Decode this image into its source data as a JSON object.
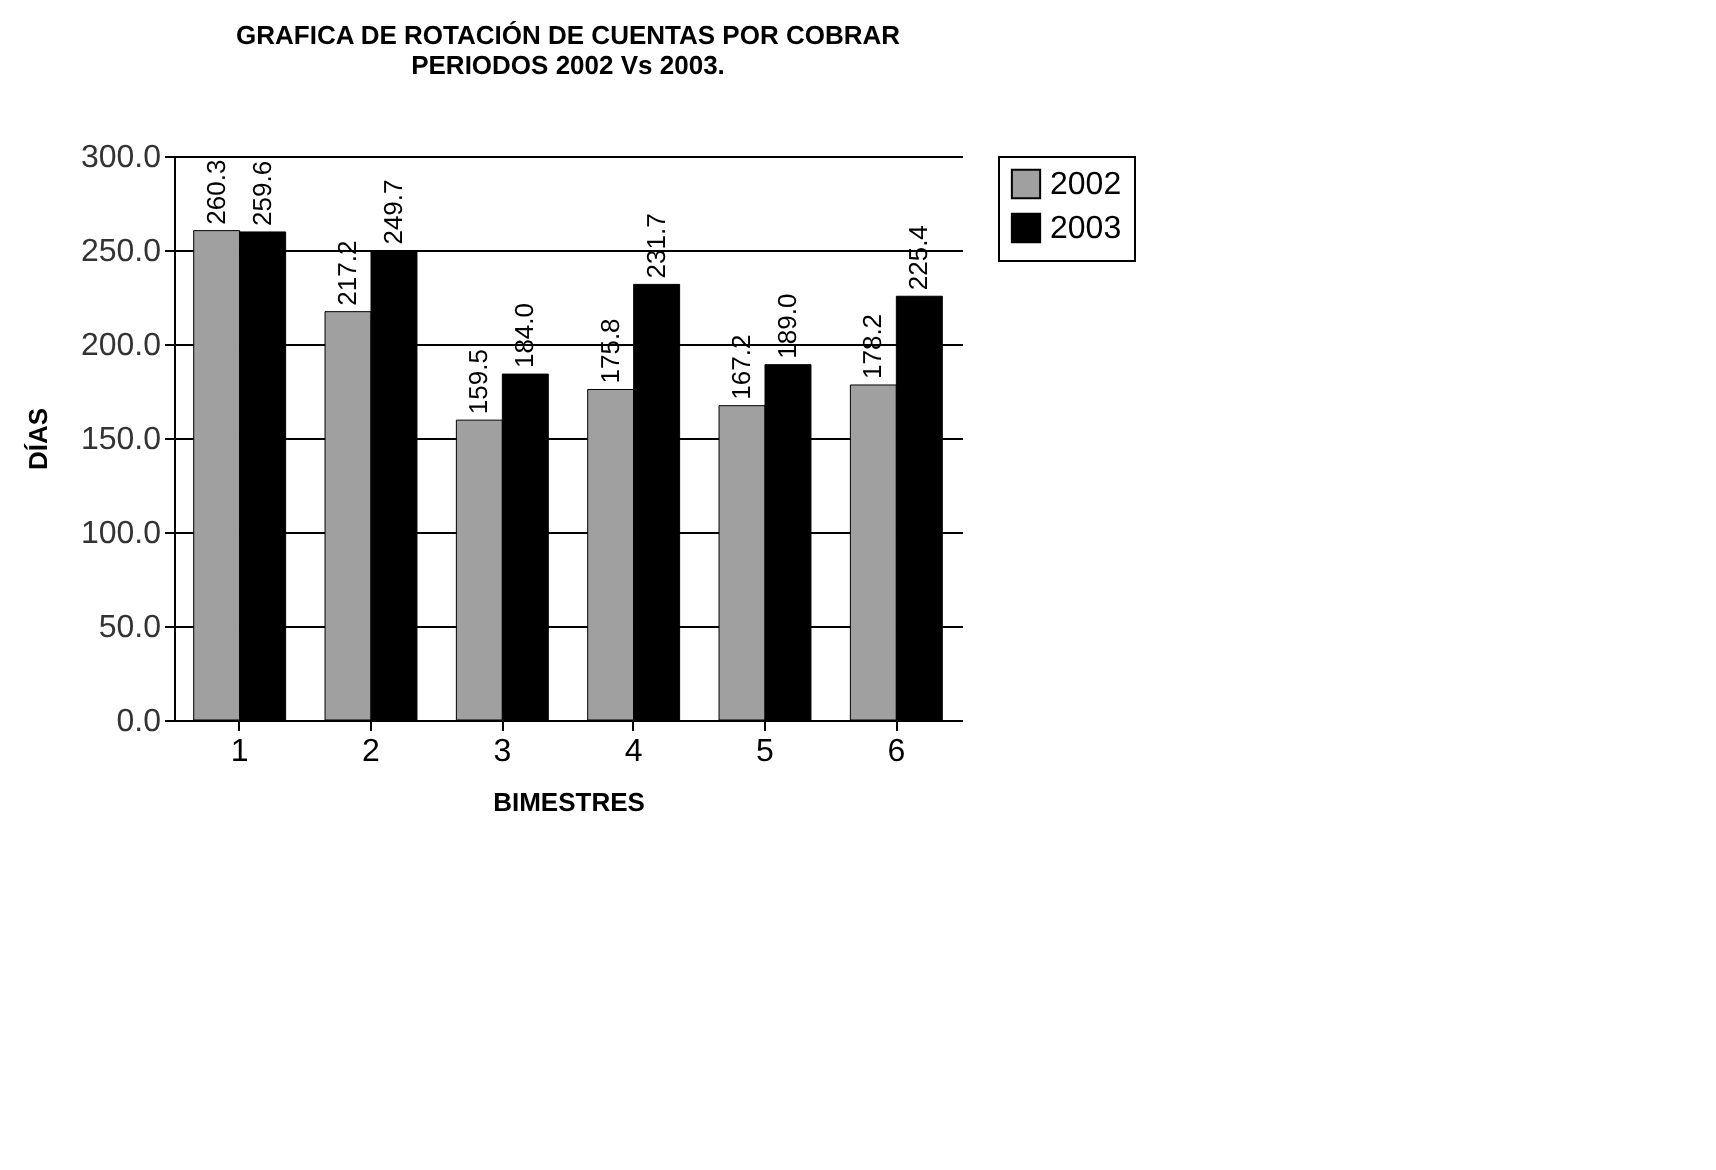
{
  "chart_data": {
    "type": "bar",
    "title": "GRAFICA  DE ROTACIÓN DE CUENTAS POR COBRAR\nPERIODOS 2002 Vs 2003.",
    "xlabel": "BIMESTRES",
    "ylabel": "DÍAS",
    "categories": [
      "1",
      "2",
      "3",
      "4",
      "5",
      "6"
    ],
    "series": [
      {
        "name": "2002",
        "color": "#a0a0a0",
        "values": [
          260.3,
          217.2,
          159.5,
          175.8,
          167.2,
          178.2
        ],
        "value_labels": [
          "260.3",
          "217.2",
          "159.5",
          "175.8",
          "167.2",
          "178.2"
        ]
      },
      {
        "name": "2003",
        "color": "#000000",
        "values": [
          259.6,
          249.7,
          184.0,
          231.7,
          189.0,
          225.4
        ],
        "value_labels": [
          "259.6",
          "249.7",
          "184.0",
          "231.7",
          "189.0",
          "225.4"
        ]
      }
    ],
    "ylim": [
      0,
      300
    ],
    "yticks": [
      {
        "value": 0,
        "label": "0.0"
      },
      {
        "value": 50,
        "label": "50.0"
      },
      {
        "value": 100,
        "label": "100.0"
      },
      {
        "value": 150,
        "label": "150.0"
      },
      {
        "value": 200,
        "label": "200.0"
      },
      {
        "value": 250,
        "label": "250.0"
      },
      {
        "value": 300,
        "label": "300.0"
      }
    ],
    "grid": "y",
    "legend": "right"
  }
}
